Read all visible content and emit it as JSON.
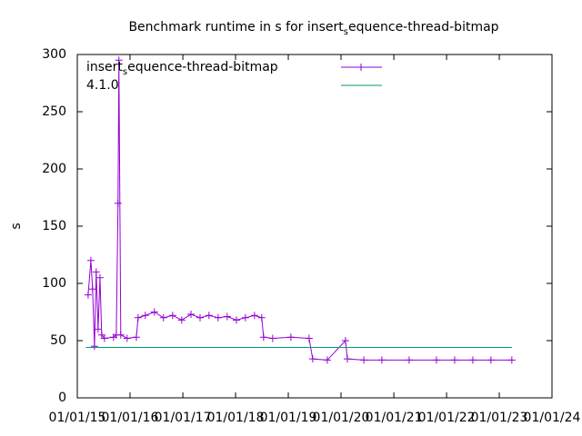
{
  "chart_data": {
    "type": "line",
    "title": [
      "Benchmark runtime in s for insert",
      "s",
      "equence-thread-bitmap"
    ],
    "y_label": "s",
    "xlim": [
      "2015-01-01",
      "2024-01-01"
    ],
    "xticks": [
      {
        "value": "2015-01-01",
        "label": "01/01/15"
      },
      {
        "value": "2016-01-01",
        "label": "01/01/16"
      },
      {
        "value": "2017-01-01",
        "label": "01/01/17"
      },
      {
        "value": "2018-01-01",
        "label": "01/01/18"
      },
      {
        "value": "2019-01-01",
        "label": "01/01/19"
      },
      {
        "value": "2020-01-01",
        "label": "01/01/20"
      },
      {
        "value": "2021-01-01",
        "label": "01/01/21"
      },
      {
        "value": "2022-01-01",
        "label": "01/01/22"
      },
      {
        "value": "2023-01-01",
        "label": "01/01/23"
      },
      {
        "value": "2024-01-01",
        "label": "01/01/24"
      }
    ],
    "ylim": [
      0,
      300
    ],
    "yticks": [
      0,
      50,
      100,
      150,
      200,
      250,
      300
    ],
    "series": [
      {
        "name": [
          "insert",
          "s",
          "equence-thread-bitmap"
        ],
        "color": "#9400d3",
        "marker": "plus",
        "x": [
          "2015-03-17",
          "2015-04-05",
          "2015-04-17",
          "2015-04-30",
          "2015-05-12",
          "2015-05-25",
          "2015-06-07",
          "2015-06-19",
          "2015-07-08",
          "2015-09-09",
          "2015-09-28",
          "2015-10-10",
          "2015-10-16",
          "2015-10-29",
          "2015-12-12",
          "2016-02-14",
          "2016-02-26",
          "2016-04-16",
          "2016-06-18",
          "2016-08-20",
          "2016-10-22",
          "2016-12-24",
          "2017-02-26",
          "2017-04-30",
          "2017-07-01",
          "2017-09-02",
          "2017-11-04",
          "2018-01-07",
          "2018-03-10",
          "2018-05-12",
          "2018-07-01",
          "2018-07-14",
          "2018-09-15",
          "2019-01-19",
          "2019-05-25",
          "2019-06-19",
          "2019-09-28",
          "2020-02-01",
          "2020-02-14",
          "2020-06-07",
          "2020-10-10",
          "2021-04-17",
          "2021-10-23",
          "2022-02-26",
          "2022-07-02",
          "2022-11-04",
          "2023-03-29"
        ],
        "values": [
          90,
          120,
          95,
          45,
          110,
          60,
          105,
          55,
          52,
          53,
          55,
          170,
          295,
          55,
          52,
          53,
          70,
          72,
          75,
          70,
          72,
          68,
          73,
          70,
          72,
          70,
          71,
          68,
          70,
          72,
          70,
          53,
          52,
          53,
          52,
          34,
          33,
          50,
          34,
          33,
          33,
          33,
          33,
          33,
          33,
          33,
          33
        ]
      },
      {
        "name": "4.1.0",
        "color": "#009e73",
        "marker": "none",
        "x": [
          "2015-03-01",
          "2023-03-29"
        ],
        "values": [
          44,
          44
        ]
      }
    ]
  }
}
